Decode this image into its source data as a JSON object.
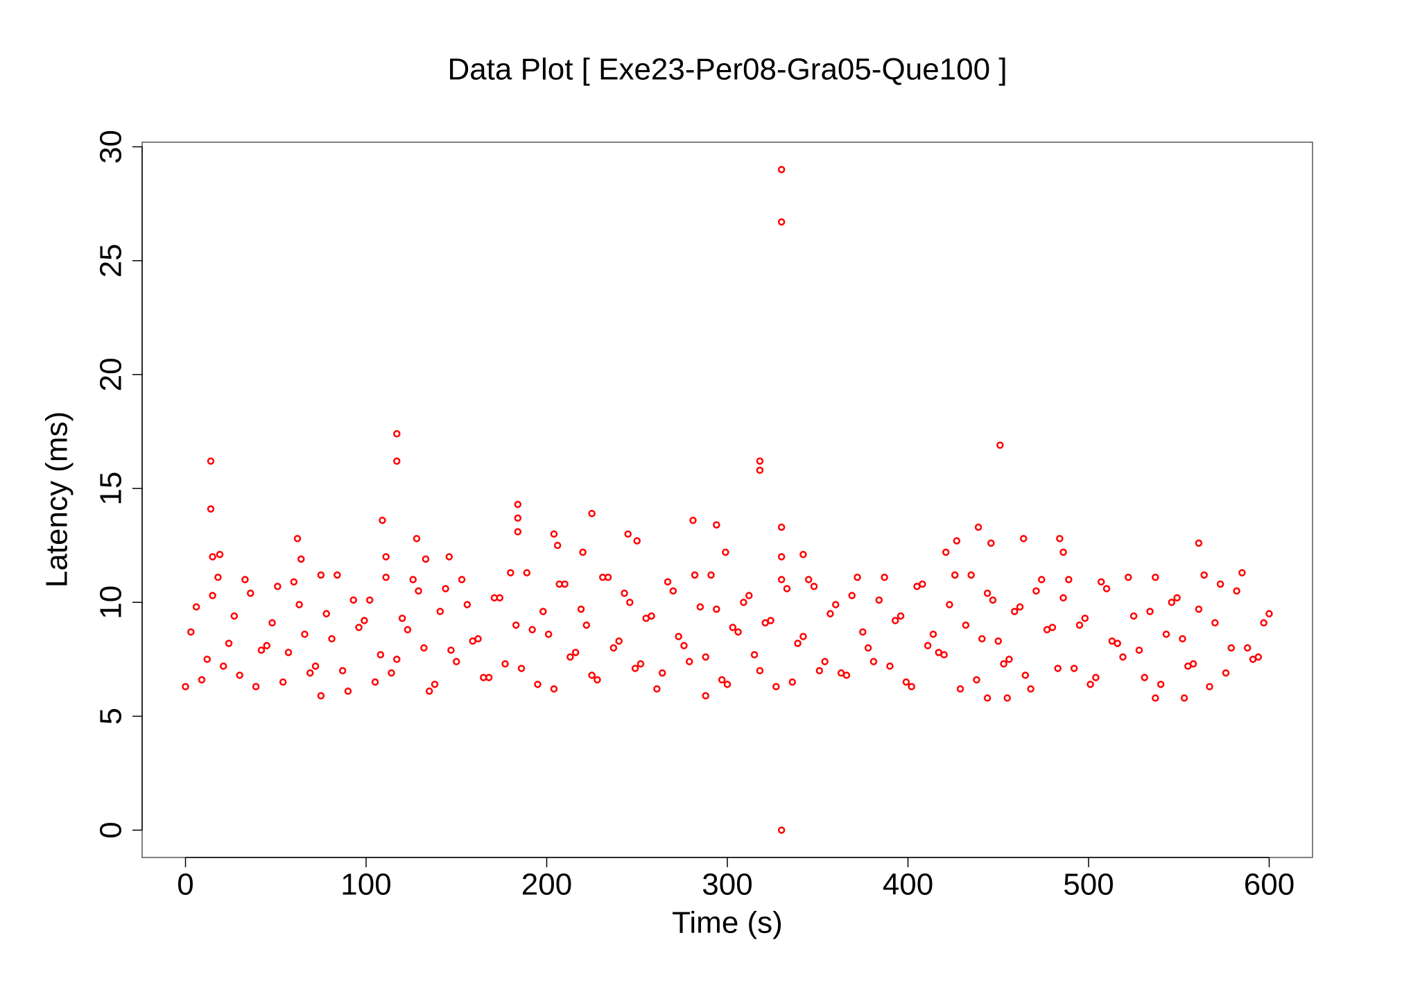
{
  "chart_data": {
    "type": "scatter",
    "title": "Data Plot [ Exe23-Per08-Gra05-Que100 ]",
    "x_label": "Time (s)",
    "y_label": "Latency (ms)",
    "color": "#ff0000",
    "grid": false,
    "xlim": [
      -24,
      624
    ],
    "xticks": [
      0,
      100,
      200,
      300,
      400,
      500,
      600
    ],
    "ylim": [
      -1.2,
      30.2
    ],
    "yticks": [
      0,
      5,
      10,
      15,
      20,
      25,
      30
    ],
    "x": [
      14,
      14,
      15,
      19,
      62,
      64,
      109,
      111,
      117,
      117,
      128,
      133,
      146,
      184,
      184,
      184,
      204,
      206,
      220,
      225,
      245,
      250,
      281,
      294,
      299,
      318,
      318,
      330,
      330,
      330,
      330,
      330,
      342,
      421,
      427,
      439,
      446,
      451,
      464,
      484,
      486,
      561,
      455,
      444,
      537,
      553,
      75,
      288,
      0,
      6,
      12,
      18,
      24,
      30,
      36,
      42,
      48,
      54,
      60,
      66,
      72,
      78,
      84,
      90,
      96,
      102,
      108,
      114,
      120,
      126,
      132,
      138,
      144,
      150,
      156,
      162,
      168,
      174,
      180,
      186,
      192,
      198,
      204,
      210,
      216,
      222,
      228,
      234,
      240,
      246,
      252,
      258,
      264,
      270,
      276,
      282,
      288,
      294,
      300,
      306,
      312,
      318,
      324,
      330,
      336,
      342,
      348,
      354,
      360,
      366,
      372,
      378,
      384,
      390,
      396,
      402,
      408,
      414,
      420,
      426,
      432,
      438,
      444,
      450,
      456,
      462,
      468,
      474,
      480,
      486,
      492,
      498,
      504,
      510,
      516,
      522,
      528,
      534,
      540,
      546,
      552,
      558,
      564,
      570,
      576,
      582,
      588,
      594,
      600,
      3,
      9,
      15,
      21,
      27,
      33,
      39,
      45,
      51,
      57,
      63,
      69,
      75,
      81,
      87,
      93,
      99,
      105,
      111,
      117,
      123,
      129,
      135,
      141,
      147,
      153,
      159,
      165,
      171,
      177,
      183,
      189,
      195,
      201,
      207,
      213,
      219,
      225,
      231,
      237,
      243,
      249,
      255,
      261,
      267,
      273,
      279,
      285,
      291,
      297,
      303,
      309,
      315,
      321,
      327,
      333,
      339,
      345,
      351,
      357,
      363,
      369,
      375,
      381,
      387,
      393,
      399,
      405,
      411,
      417,
      423,
      429,
      435,
      441,
      447,
      453,
      459,
      465,
      471,
      477,
      483,
      489,
      495,
      501,
      507,
      513,
      519,
      525,
      531,
      537,
      543,
      549,
      555,
      561,
      567,
      573,
      579,
      585,
      591,
      597
    ],
    "values": [
      16.2,
      14.1,
      12.0,
      12.1,
      12.8,
      11.9,
      13.6,
      12.0,
      17.4,
      16.2,
      12.8,
      11.9,
      12.0,
      14.3,
      13.7,
      13.1,
      13.0,
      12.5,
      12.2,
      13.9,
      13.0,
      12.7,
      13.6,
      13.4,
      12.2,
      16.2,
      15.8,
      29.0,
      26.7,
      13.3,
      12.0,
      0,
      12.1,
      12.2,
      12.7,
      13.3,
      12.6,
      16.9,
      12.8,
      12.8,
      12.2,
      12.6,
      5.8,
      5.8,
      5.8,
      5.8,
      5.9,
      5.9,
      6.3,
      9.8,
      7.5,
      11.1,
      8.2,
      6.8,
      10.4,
      7.9,
      9.1,
      6.5,
      10.9,
      8.6,
      7.2,
      9.5,
      11.2,
      6.1,
      8.9,
      10.1,
      7.7,
      6.9,
      9.3,
      11.0,
      8.0,
      6.4,
      10.6,
      7.4,
      9.9,
      8.4,
      6.7,
      10.2,
      11.3,
      7.1,
      8.8,
      9.6,
      6.2,
      10.8,
      7.8,
      9.0,
      6.6,
      11.1,
      8.3,
      10.0,
      7.3,
      9.4,
      6.9,
      10.5,
      8.1,
      11.2,
      7.6,
      9.7,
      6.4,
      8.7,
      10.3,
      7.0,
      9.2,
      11.0,
      6.5,
      8.5,
      10.7,
      7.4,
      9.9,
      6.8,
      11.1,
      8.0,
      10.1,
      7.2,
      9.4,
      6.3,
      10.8,
      8.6,
      7.7,
      11.2,
      9.0,
      6.6,
      10.4,
      8.3,
      7.5,
      9.8,
      6.2,
      11.0,
      8.9,
      10.2,
      7.1,
      9.3,
      6.7,
      10.6,
      8.2,
      11.1,
      7.9,
      9.6,
      6.4,
      10.0,
      8.4,
      7.3,
      11.2,
      9.1,
      6.9,
      10.5,
      8.0,
      7.6,
      9.5,
      8.7,
      6.6,
      10.3,
      7.2,
      9.4,
      11.0,
      6.3,
      8.1,
      10.7,
      7.8,
      9.9,
      6.9,
      11.2,
      8.4,
      7.0,
      10.1,
      9.2,
      6.5,
      11.1,
      7.5,
      8.8,
      10.5,
      6.1,
      9.6,
      7.9,
      11.0,
      8.3,
      6.7,
      10.2,
      7.3,
      9.0,
      11.3,
      6.4,
      8.6,
      10.8,
      7.6,
      9.7,
      6.8,
      11.1,
      8.0,
      10.4,
      7.1,
      9.3,
      6.2,
      10.9,
      8.5,
      7.4,
      9.8,
      11.2,
      6.6,
      8.9,
      10.0,
      7.7,
      9.1,
      6.3,
      10.6,
      8.2,
      11.0,
      7.0,
      9.5,
      6.9,
      10.3,
      8.7,
      7.4,
      11.1,
      9.2,
      6.5,
      10.7,
      8.1,
      7.8,
      9.9,
      6.2,
      11.2,
      8.4,
      10.1,
      7.3,
      9.6,
      6.8,
      10.5,
      8.8,
      7.1,
      11.0,
      9.0,
      6.4,
      10.9,
      8.3,
      7.6,
      9.4,
      6.7,
      11.1,
      8.6,
      10.2,
      7.2,
      9.7,
      6.3,
      10.8,
      8.0,
      11.3,
      7.5,
      9.1
    ]
  }
}
